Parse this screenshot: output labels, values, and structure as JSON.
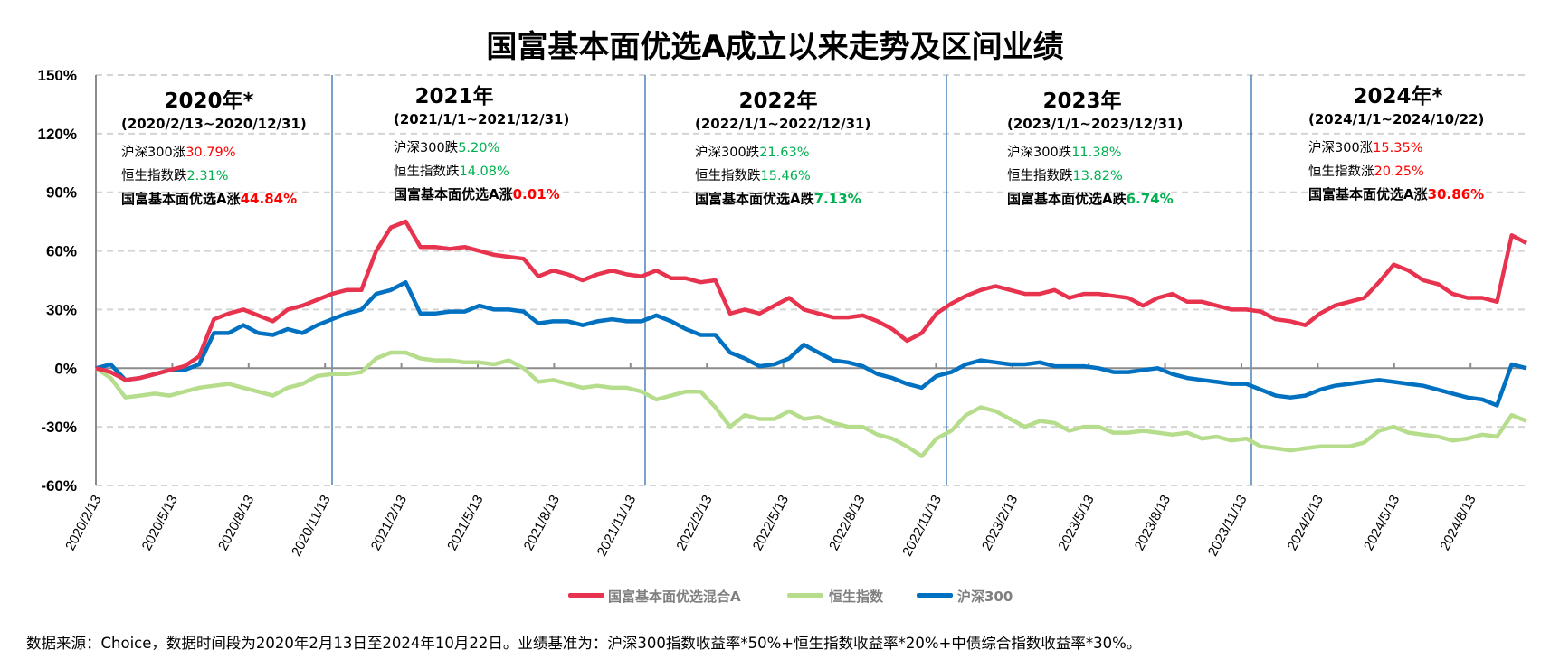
{
  "title": "国富基本面优选A成立以来走势及区间业绩",
  "colors": {
    "fund": "#e8334f",
    "hsi": "#b5dd8c",
    "csi300": "#0070c0",
    "up": "#ff0000",
    "down": "#00b050",
    "separator": "#4f81bd"
  },
  "panels": [
    {
      "year": "2020年*",
      "range": "(2020/2/13~2020/12/31)",
      "lines": [
        {
          "label": "沪深300涨",
          "value": "30.79%",
          "dir": "up"
        },
        {
          "label": "恒生指数跌",
          "value": "2.31%",
          "dir": "down"
        },
        {
          "label": "国富基本面优选A涨",
          "value": "44.84%",
          "dir": "up"
        }
      ]
    },
    {
      "year": "2021年",
      "range": "(2021/1/1~2021/12/31)",
      "lines": [
        {
          "label": "沪深300跌",
          "value": "5.20%",
          "dir": "down"
        },
        {
          "label": "恒生指数跌",
          "value": "14.08%",
          "dir": "down"
        },
        {
          "label": "国富基本面优选A涨",
          "value": "0.01%",
          "dir": "up"
        }
      ]
    },
    {
      "year": "2022年",
      "range": "(2022/1/1~2022/12/31)",
      "lines": [
        {
          "label": "沪深300跌",
          "value": "21.63%",
          "dir": "down"
        },
        {
          "label": "恒生指数跌",
          "value": "15.46%",
          "dir": "down"
        },
        {
          "label": "国富基本面优选A跌",
          "value": "7.13%",
          "dir": "down"
        }
      ]
    },
    {
      "year": "2023年",
      "range": "(2023/1/1~2023/12/31)",
      "lines": [
        {
          "label": "沪深300跌",
          "value": "11.38%",
          "dir": "down"
        },
        {
          "label": "恒生指数跌",
          "value": "13.82%",
          "dir": "down"
        },
        {
          "label": "国富基本面优选A跌",
          "value": "6.74%",
          "dir": "down"
        }
      ]
    },
    {
      "year": "2024年*",
      "range": "(2024/1/1~2024/10/22)",
      "lines": [
        {
          "label": "沪深300涨",
          "value": "15.35%",
          "dir": "up"
        },
        {
          "label": "恒生指数涨",
          "value": "20.25%",
          "dir": "up"
        },
        {
          "label": "国富基本面优选A涨",
          "value": "30.86%",
          "dir": "up"
        }
      ]
    }
  ],
  "footnote": "数据来源：Choice，数据时间段为2020年2月13日至2024年10月22日。业绩基准为：沪深300指数收益率*50%+恒生指数收益率*20%+中债综合指数收益率*30%。",
  "chart_data": {
    "type": "line",
    "title": "国富基本面优选A成立以来走势及区间业绩",
    "x_range": [
      "2020/2/13",
      "2024/10/22"
    ],
    "x_ticks": [
      "2020/2/13",
      "2020/5/13",
      "2020/8/13",
      "2020/11/13",
      "2021/2/13",
      "2021/5/13",
      "2021/8/13",
      "2021/11/13",
      "2022/2/13",
      "2022/5/13",
      "2022/8/13",
      "2022/11/13",
      "2023/2/13",
      "2023/5/13",
      "2023/8/13",
      "2023/11/13",
      "2024/2/13",
      "2024/5/13",
      "2024/8/13"
    ],
    "y_ticks": [
      "150%",
      "120%",
      "90%",
      "60%",
      "30%",
      "0%",
      "-30%",
      "-60%"
    ],
    "ylim": [
      -60,
      150
    ],
    "y_unit": "%",
    "grid": "horizontal dashed",
    "legend": "bottom",
    "period_separators": [
      "2021/1/1",
      "2022/1/1",
      "2023/1/1",
      "2024/1/1"
    ],
    "series": [
      {
        "name": "国富基本面优选混合A",
        "color": "#e8334f",
        "values": [
          0,
          -2,
          -6,
          -5,
          -3,
          -1,
          1,
          6,
          25,
          28,
          30,
          27,
          24,
          30,
          32,
          35,
          38,
          40,
          40,
          60,
          72,
          75,
          62,
          62,
          61,
          62,
          60,
          58,
          57,
          56,
          47,
          50,
          48,
          45,
          48,
          50,
          48,
          47,
          50,
          46,
          46,
          44,
          45,
          28,
          30,
          28,
          32,
          36,
          30,
          28,
          26,
          26,
          27,
          24,
          20,
          14,
          18,
          28,
          33,
          37,
          40,
          42,
          40,
          38,
          38,
          40,
          36,
          38,
          38,
          37,
          36,
          32,
          36,
          38,
          34,
          34,
          32,
          30,
          30,
          29,
          25,
          24,
          22,
          28,
          32,
          34,
          36,
          44,
          53,
          50,
          45,
          43,
          38,
          36,
          36,
          34,
          68,
          64
        ]
      },
      {
        "name": "恒生指数",
        "color": "#b5dd8c",
        "values": [
          0,
          -5,
          -15,
          -14,
          -13,
          -14,
          -12,
          -10,
          -9,
          -8,
          -10,
          -12,
          -14,
          -10,
          -8,
          -4,
          -3,
          -3,
          -2,
          5,
          8,
          8,
          5,
          4,
          4,
          3,
          3,
          2,
          4,
          0,
          -7,
          -6,
          -8,
          -10,
          -9,
          -10,
          -10,
          -12,
          -16,
          -14,
          -12,
          -12,
          -20,
          -30,
          -24,
          -26,
          -26,
          -22,
          -26,
          -25,
          -28,
          -30,
          -30,
          -34,
          -36,
          -40,
          -45,
          -36,
          -32,
          -24,
          -20,
          -22,
          -26,
          -30,
          -27,
          -28,
          -32,
          -30,
          -30,
          -33,
          -33,
          -32,
          -33,
          -34,
          -33,
          -36,
          -35,
          -37,
          -36,
          -40,
          -41,
          -42,
          -41,
          -40,
          -40,
          -40,
          -38,
          -32,
          -30,
          -33,
          -34,
          -35,
          -37,
          -36,
          -34,
          -35,
          -24,
          -27
        ]
      },
      {
        "name": "沪深300",
        "color": "#0070c0",
        "values": [
          0,
          2,
          -6,
          -5,
          -3,
          -1,
          -1,
          2,
          18,
          18,
          22,
          18,
          17,
          20,
          18,
          22,
          25,
          28,
          30,
          38,
          40,
          44,
          28,
          28,
          29,
          29,
          32,
          30,
          30,
          29,
          23,
          24,
          24,
          22,
          24,
          25,
          24,
          24,
          27,
          24,
          20,
          17,
          17,
          8,
          5,
          1,
          2,
          5,
          12,
          8,
          4,
          3,
          1,
          -3,
          -5,
          -8,
          -10,
          -4,
          -2,
          2,
          4,
          3,
          2,
          2,
          3,
          1,
          1,
          1,
          0,
          -2,
          -2,
          -1,
          0,
          -3,
          -5,
          -6,
          -7,
          -8,
          -8,
          -11,
          -14,
          -15,
          -14,
          -11,
          -9,
          -8,
          -7,
          -6,
          -7,
          -8,
          -9,
          -11,
          -13,
          -15,
          -16,
          -19,
          2,
          0
        ]
      }
    ]
  }
}
